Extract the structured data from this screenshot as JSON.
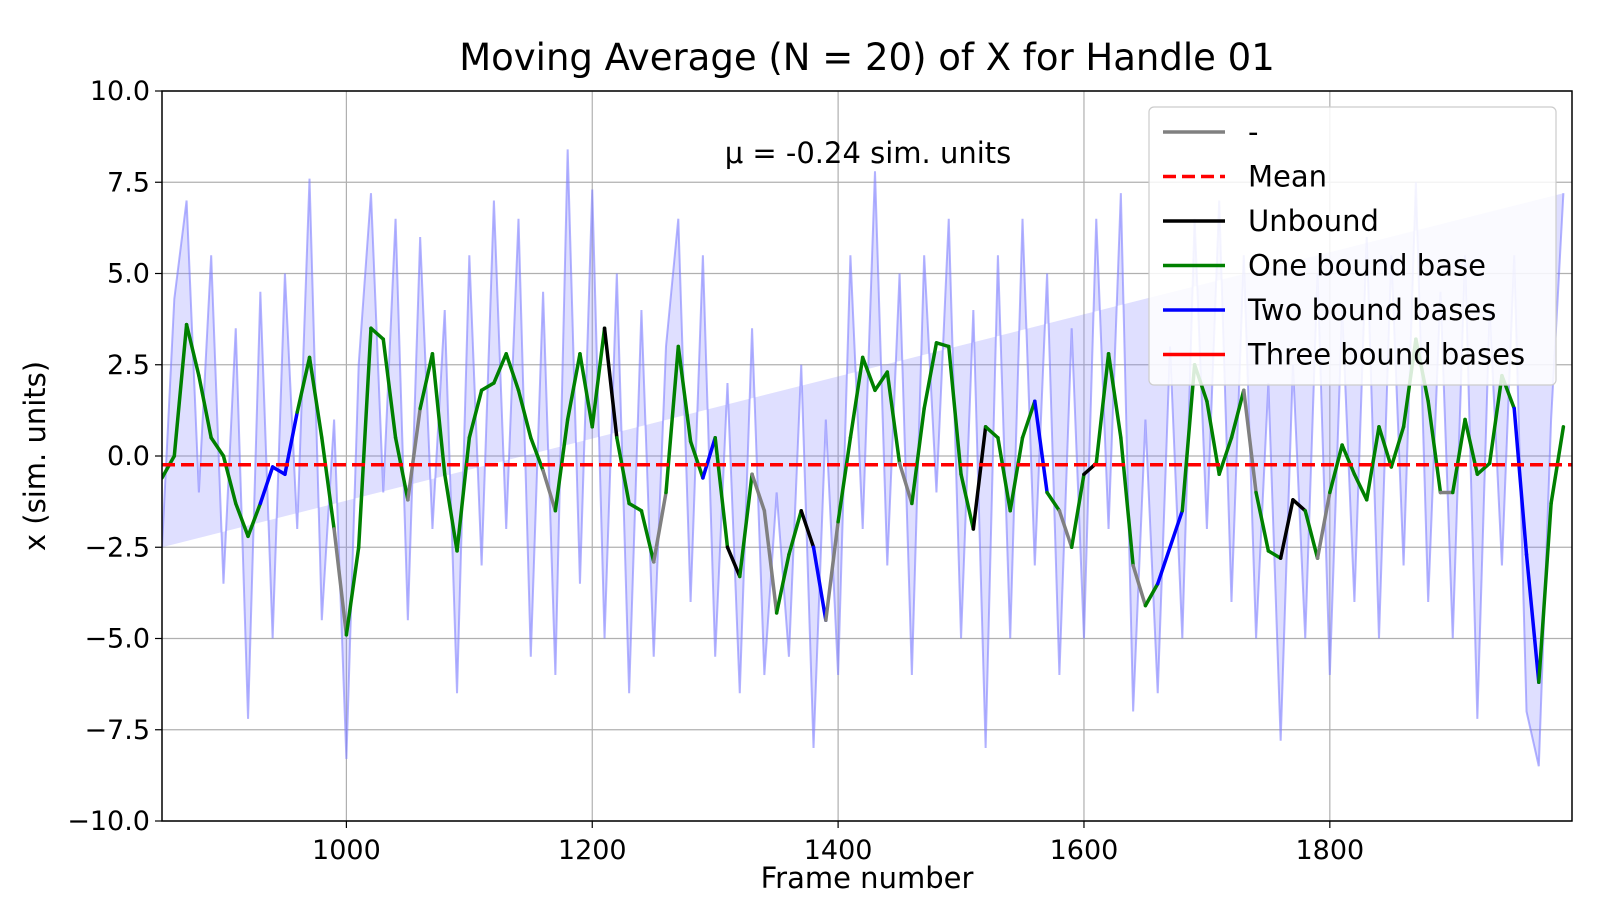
{
  "chart_data": {
    "type": "line",
    "title": "Moving Average (N = 20) of X for Handle 01",
    "annotation": "μ = -0.24 sim. units",
    "x_label": "Frame number",
    "y_label": "x (sim. units)",
    "xlim": [
      850,
      1997
    ],
    "ylim": [
      -10,
      10
    ],
    "xticks": [
      1000,
      1200,
      1400,
      1600,
      1800
    ],
    "yticks": [
      {
        "value": -10,
        "label": "−10.0"
      },
      {
        "value": -7.5,
        "label": "−7.5"
      },
      {
        "value": -5,
        "label": "−5.0"
      },
      {
        "value": -2.5,
        "label": "−2.5"
      },
      {
        "value": 0,
        "label": "0.0"
      },
      {
        "value": 2.5,
        "label": "2.5"
      },
      {
        "value": 5,
        "label": "5.0"
      },
      {
        "value": 7.5,
        "label": "7.5"
      },
      {
        "value": 10,
        "label": "10.0"
      }
    ],
    "grid": true,
    "legend": "upper right",
    "series": [
      {
        "name": "-",
        "color": "#808080"
      },
      {
        "name": "Mean",
        "color": "#ff0000",
        "dashed": true,
        "value": -0.24
      },
      {
        "name": "Unbound",
        "color": "#000000"
      },
      {
        "name": "One bound base",
        "color": "#008000"
      },
      {
        "name": "Two bound bases",
        "color": "#0000ff"
      },
      {
        "name": "Three bound bases",
        "color": "#ff0000"
      }
    ],
    "raw_color": "#8080ff",
    "x": [
      850,
      860,
      870,
      880,
      890,
      900,
      910,
      920,
      930,
      940,
      950,
      960,
      970,
      980,
      990,
      1000,
      1010,
      1020,
      1030,
      1040,
      1050,
      1060,
      1070,
      1080,
      1090,
      1100,
      1110,
      1120,
      1130,
      1140,
      1150,
      1160,
      1170,
      1180,
      1190,
      1200,
      1210,
      1220,
      1230,
      1240,
      1250,
      1260,
      1270,
      1280,
      1290,
      1300,
      1310,
      1320,
      1330,
      1340,
      1350,
      1360,
      1370,
      1380,
      1390,
      1400,
      1410,
      1420,
      1430,
      1440,
      1450,
      1460,
      1470,
      1480,
      1490,
      1500,
      1510,
      1520,
      1530,
      1540,
      1550,
      1560,
      1570,
      1580,
      1590,
      1600,
      1610,
      1620,
      1630,
      1640,
      1650,
      1660,
      1670,
      1680,
      1690,
      1700,
      1710,
      1720,
      1730,
      1740,
      1750,
      1760,
      1770,
      1780,
      1790,
      1800,
      1810,
      1820,
      1830,
      1840,
      1850,
      1860,
      1870,
      1880,
      1890,
      1900,
      1910,
      1920,
      1930,
      1940,
      1950,
      1960,
      1970,
      1980,
      1990
    ],
    "raw_values": [
      -2.5,
      4.3,
      7,
      -1,
      5.5,
      -3.5,
      3.5,
      -7.2,
      4.5,
      -5,
      5,
      -2,
      7.6,
      -4.5,
      1,
      -8.3,
      2.5,
      7.2,
      -1,
      6.5,
      -4.5,
      6,
      -2,
      4,
      -6.5,
      5.5,
      -3,
      7,
      -2,
      6.5,
      -5.5,
      4.5,
      -6,
      8.4,
      -3.5,
      7.3,
      -5,
      5,
      -6.5,
      4,
      -5.5,
      3,
      6.5,
      -4,
      5.5,
      -5.5,
      2,
      -6.5,
      3.5,
      -6,
      -1,
      -5.5,
      2.5,
      -8,
      1,
      -6,
      5.5,
      -2,
      7.8,
      -3,
      5,
      -6,
      5.5,
      -1,
      6.5,
      -5,
      4,
      -8,
      5.5,
      -5,
      6.5,
      -3,
      5,
      -6,
      3.5,
      -5,
      6.5,
      -2,
      7.2,
      -7,
      1,
      -6.5,
      3,
      -5,
      6.5,
      -2,
      7,
      -4,
      5.5,
      -5,
      2,
      -7.8,
      2.5,
      -5,
      5,
      -6,
      4,
      -4,
      6,
      -5,
      5.5,
      -3,
      7.5,
      -4,
      4.5,
      -5,
      5.5,
      -7.2,
      4,
      -3,
      5.5,
      -7,
      -8.5,
      1,
      7.2
    ],
    "moving_average": {
      "values": [
        -0.6,
        0,
        3.6,
        2.2,
        0.5,
        0,
        -1.3,
        -2.2,
        -1.3,
        -0.3,
        -0.5,
        1.2,
        2.7,
        0.5,
        -2,
        -4.9,
        -2.5,
        3.5,
        3.2,
        0.5,
        -1.2,
        1.3,
        2.8,
        -0.5,
        -2.6,
        0.5,
        1.8,
        2,
        2.8,
        1.8,
        0.5,
        -0.4,
        -1.5,
        1,
        2.8,
        0.8,
        3.5,
        0.5,
        -1.3,
        -1.5,
        -2.9,
        -1,
        3,
        0.4,
        -0.6,
        0.5,
        -2.5,
        -3.3,
        -0.5,
        -1.5,
        -4.3,
        -2.7,
        -1.5,
        -2.5,
        -4.5,
        -1.8,
        0.5,
        2.7,
        1.8,
        2.3,
        -0.2,
        -1.3,
        1.3,
        3.1,
        3,
        -0.5,
        -2,
        0.8,
        0.5,
        -1.5,
        0.5,
        1.5,
        -1,
        -1.5,
        -2.5,
        -0.5,
        -0.2,
        2.8,
        0.5,
        -3,
        -4.1,
        -3.5,
        -2.5,
        -1.5,
        2.5,
        1.5,
        -0.5,
        0.5,
        1.8,
        -1,
        -2.6,
        -2.8,
        -1.2,
        -1.5,
        -2.8,
        -1,
        0.3,
        -0.5,
        -1.2,
        0.8,
        -0.3,
        0.8,
        3.2,
        1.5,
        -1,
        -1,
        1,
        -0.5,
        -0.2,
        2.2,
        1.3,
        -2.7,
        -6.2,
        -1.3,
        0.8
      ],
      "states": [
        3,
        3,
        3,
        3,
        3,
        3,
        3,
        3,
        4,
        4,
        4,
        3,
        3,
        3,
        0,
        3,
        3,
        3,
        3,
        3,
        0,
        3,
        3,
        3,
        3,
        3,
        3,
        3,
        3,
        3,
        3,
        0,
        3,
        3,
        3,
        3,
        2,
        3,
        3,
        3,
        0,
        3,
        3,
        3,
        4,
        3,
        2,
        3,
        0,
        0,
        3,
        3,
        2,
        4,
        0,
        3,
        3,
        3,
        3,
        3,
        0,
        3,
        3,
        3,
        3,
        3,
        2,
        3,
        3,
        3,
        3,
        4,
        3,
        0,
        3,
        2,
        3,
        3,
        3,
        0,
        3,
        4,
        4,
        3,
        3,
        3,
        3,
        3,
        0,
        3,
        3,
        2,
        2,
        3,
        0,
        3,
        3,
        3,
        3,
        3,
        3,
        3,
        3,
        3,
        0,
        3,
        3,
        3,
        3,
        3,
        4,
        4,
        3,
        3,
        3
      ]
    }
  }
}
